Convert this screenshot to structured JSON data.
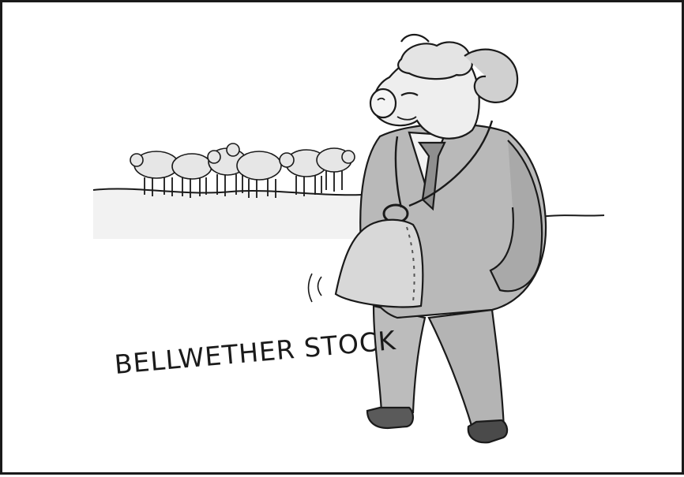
{
  "cartoon": {
    "caption": "BELLWETHER STOCK",
    "colors": {
      "ink": "#1a1a1a",
      "paper": "#ffffff",
      "suit": "#b9b9b9",
      "suit_shadow": "#8a8a8a",
      "bell": "#d8d8d8",
      "wool": "#e4e4e4",
      "ground": "#eeeeee"
    },
    "icons": [
      "ram-figure-illustration",
      "cowbell-illustration",
      "sheep-flock-illustration"
    ]
  }
}
